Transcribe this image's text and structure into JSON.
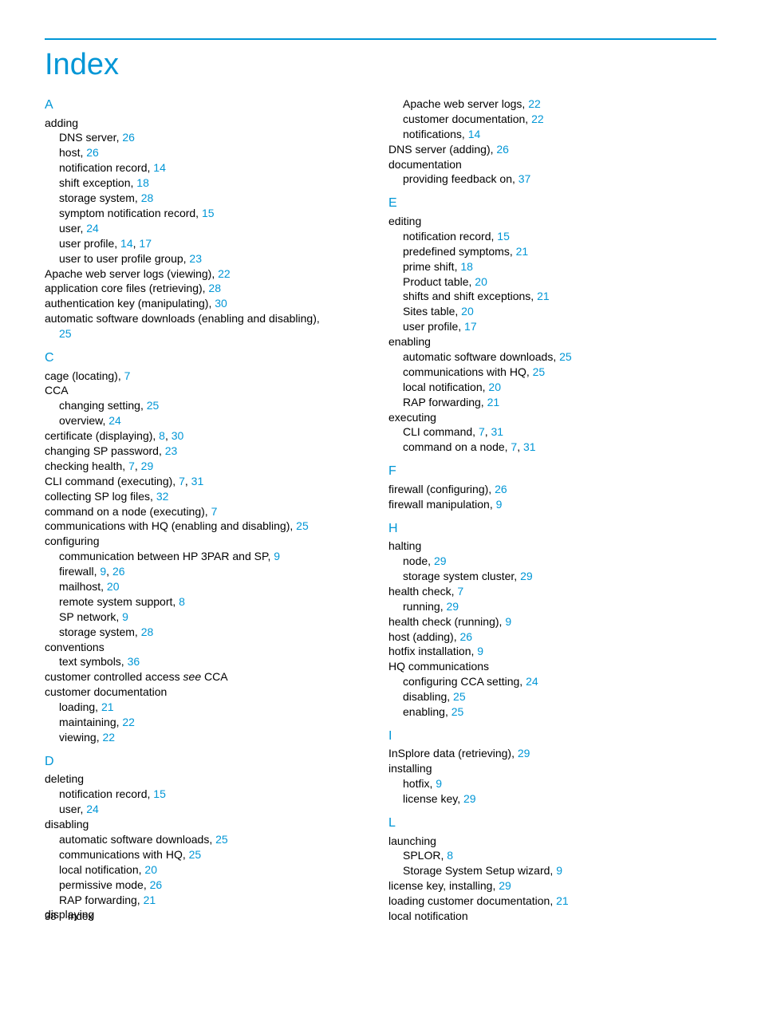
{
  "title": "Index",
  "footer": {
    "pageNum": "38",
    "label": "Index"
  },
  "colors": {
    "accent": "#0096d6",
    "text": "#000000",
    "bg": "#ffffff"
  },
  "typography": {
    "body_fontsize": 14,
    "title_fontsize": 38,
    "letter_fontsize": 16
  },
  "left": [
    {
      "type": "letter",
      "text": "A"
    },
    {
      "type": "entry",
      "level": 0,
      "text": "adding",
      "pages": []
    },
    {
      "type": "entry",
      "level": 1,
      "text": "DNS server, ",
      "pages": [
        "26"
      ]
    },
    {
      "type": "entry",
      "level": 1,
      "text": "host, ",
      "pages": [
        "26"
      ]
    },
    {
      "type": "entry",
      "level": 1,
      "text": "notification record, ",
      "pages": [
        "14"
      ]
    },
    {
      "type": "entry",
      "level": 1,
      "text": "shift exception, ",
      "pages": [
        "18"
      ]
    },
    {
      "type": "entry",
      "level": 1,
      "text": "storage system, ",
      "pages": [
        "28"
      ]
    },
    {
      "type": "entry",
      "level": 1,
      "text": "symptom notification record, ",
      "pages": [
        "15"
      ]
    },
    {
      "type": "entry",
      "level": 1,
      "text": "user, ",
      "pages": [
        "24"
      ]
    },
    {
      "type": "entry",
      "level": 1,
      "text": "user profile, ",
      "pages": [
        "14",
        "17"
      ]
    },
    {
      "type": "entry",
      "level": 1,
      "text": "user to user profile group, ",
      "pages": [
        "23"
      ]
    },
    {
      "type": "entry",
      "level": 0,
      "text": "Apache web server logs (viewing), ",
      "pages": [
        "22"
      ]
    },
    {
      "type": "entry",
      "level": 0,
      "text": "application core files (retrieving), ",
      "pages": [
        "28"
      ]
    },
    {
      "type": "entry",
      "level": 0,
      "text": "authentication key (manipulating), ",
      "pages": [
        "30"
      ]
    },
    {
      "type": "entry",
      "level": 0,
      "text": "automatic software downloads (enabling and disabling),",
      "pages": []
    },
    {
      "type": "entry",
      "level": 1,
      "text": "",
      "pages": [
        "25"
      ]
    },
    {
      "type": "letter",
      "text": "C"
    },
    {
      "type": "entry",
      "level": 0,
      "text": "cage (locating), ",
      "pages": [
        "7"
      ]
    },
    {
      "type": "entry",
      "level": 0,
      "text": "CCA",
      "pages": []
    },
    {
      "type": "entry",
      "level": 1,
      "text": "changing setting, ",
      "pages": [
        "25"
      ]
    },
    {
      "type": "entry",
      "level": 1,
      "text": "overview, ",
      "pages": [
        "24"
      ]
    },
    {
      "type": "entry",
      "level": 0,
      "text": "certificate (displaying), ",
      "pages": [
        "8",
        "30"
      ]
    },
    {
      "type": "entry",
      "level": 0,
      "text": "changing SP password, ",
      "pages": [
        "23"
      ]
    },
    {
      "type": "entry",
      "level": 0,
      "text": "checking health, ",
      "pages": [
        "7",
        "29"
      ]
    },
    {
      "type": "entry",
      "level": 0,
      "text": "CLI command (executing), ",
      "pages": [
        "7",
        "31"
      ]
    },
    {
      "type": "entry",
      "level": 0,
      "text": "collecting SP log files, ",
      "pages": [
        "32"
      ]
    },
    {
      "type": "entry",
      "level": 0,
      "text": "command on a node (executing), ",
      "pages": [
        "7"
      ]
    },
    {
      "type": "entry",
      "level": 0,
      "text": "communications with HQ (enabling and disabling), ",
      "pages": [
        "25"
      ]
    },
    {
      "type": "entry",
      "level": 0,
      "text": "configuring",
      "pages": []
    },
    {
      "type": "entry",
      "level": 1,
      "text": "communication between HP 3PAR and SP, ",
      "pages": [
        "9"
      ]
    },
    {
      "type": "entry",
      "level": 1,
      "text": "firewall, ",
      "pages": [
        "9",
        "26"
      ]
    },
    {
      "type": "entry",
      "level": 1,
      "text": "mailhost, ",
      "pages": [
        "20"
      ]
    },
    {
      "type": "entry",
      "level": 1,
      "text": "remote system support, ",
      "pages": [
        "8"
      ]
    },
    {
      "type": "entry",
      "level": 1,
      "text": "SP network, ",
      "pages": [
        "9"
      ]
    },
    {
      "type": "entry",
      "level": 1,
      "text": "storage system, ",
      "pages": [
        "28"
      ]
    },
    {
      "type": "entry",
      "level": 0,
      "text": "conventions",
      "pages": []
    },
    {
      "type": "entry",
      "level": 1,
      "text": "text symbols, ",
      "pages": [
        "36"
      ]
    },
    {
      "type": "entry",
      "level": 0,
      "text": "customer controlled access ",
      "pages": [],
      "see": "see",
      "seeTarget": " CCA"
    },
    {
      "type": "entry",
      "level": 0,
      "text": "customer documentation",
      "pages": []
    },
    {
      "type": "entry",
      "level": 1,
      "text": "loading, ",
      "pages": [
        "21"
      ]
    },
    {
      "type": "entry",
      "level": 1,
      "text": "maintaining, ",
      "pages": [
        "22"
      ]
    },
    {
      "type": "entry",
      "level": 1,
      "text": "viewing, ",
      "pages": [
        "22"
      ]
    },
    {
      "type": "letter",
      "text": "D"
    },
    {
      "type": "entry",
      "level": 0,
      "text": "deleting",
      "pages": []
    },
    {
      "type": "entry",
      "level": 1,
      "text": "notification record, ",
      "pages": [
        "15"
      ]
    },
    {
      "type": "entry",
      "level": 1,
      "text": "user, ",
      "pages": [
        "24"
      ]
    },
    {
      "type": "entry",
      "level": 0,
      "text": "disabling",
      "pages": []
    },
    {
      "type": "entry",
      "level": 1,
      "text": "automatic software downloads, ",
      "pages": [
        "25"
      ]
    },
    {
      "type": "entry",
      "level": 1,
      "text": "communications with HQ, ",
      "pages": [
        "25"
      ]
    },
    {
      "type": "entry",
      "level": 1,
      "text": "local notification, ",
      "pages": [
        "20"
      ]
    },
    {
      "type": "entry",
      "level": 1,
      "text": "permissive mode, ",
      "pages": [
        "26"
      ]
    },
    {
      "type": "entry",
      "level": 1,
      "text": "RAP forwarding, ",
      "pages": [
        "21"
      ]
    },
    {
      "type": "entry",
      "level": 0,
      "text": "displaying",
      "pages": []
    }
  ],
  "right": [
    {
      "type": "entry",
      "level": 1,
      "text": "Apache web server logs, ",
      "pages": [
        "22"
      ]
    },
    {
      "type": "entry",
      "level": 1,
      "text": "customer documentation, ",
      "pages": [
        "22"
      ]
    },
    {
      "type": "entry",
      "level": 1,
      "text": "notifications, ",
      "pages": [
        "14"
      ]
    },
    {
      "type": "entry",
      "level": 0,
      "text": "DNS server (adding), ",
      "pages": [
        "26"
      ]
    },
    {
      "type": "entry",
      "level": 0,
      "text": "documentation",
      "pages": []
    },
    {
      "type": "entry",
      "level": 1,
      "text": "providing feedback on, ",
      "pages": [
        "37"
      ]
    },
    {
      "type": "letter",
      "text": "E"
    },
    {
      "type": "entry",
      "level": 0,
      "text": "editing",
      "pages": []
    },
    {
      "type": "entry",
      "level": 1,
      "text": "notification record, ",
      "pages": [
        "15"
      ]
    },
    {
      "type": "entry",
      "level": 1,
      "text": "predefined symptoms, ",
      "pages": [
        "21"
      ]
    },
    {
      "type": "entry",
      "level": 1,
      "text": "prime shift, ",
      "pages": [
        "18"
      ]
    },
    {
      "type": "entry",
      "level": 1,
      "text": "Product table, ",
      "pages": [
        "20"
      ]
    },
    {
      "type": "entry",
      "level": 1,
      "text": "shifts and shift exceptions, ",
      "pages": [
        "21"
      ]
    },
    {
      "type": "entry",
      "level": 1,
      "text": "Sites table, ",
      "pages": [
        "20"
      ]
    },
    {
      "type": "entry",
      "level": 1,
      "text": "user profile, ",
      "pages": [
        "17"
      ]
    },
    {
      "type": "entry",
      "level": 0,
      "text": "enabling",
      "pages": []
    },
    {
      "type": "entry",
      "level": 1,
      "text": "automatic software downloads, ",
      "pages": [
        "25"
      ]
    },
    {
      "type": "entry",
      "level": 1,
      "text": "communications with HQ, ",
      "pages": [
        "25"
      ]
    },
    {
      "type": "entry",
      "level": 1,
      "text": "local notification, ",
      "pages": [
        "20"
      ]
    },
    {
      "type": "entry",
      "level": 1,
      "text": "RAP forwarding, ",
      "pages": [
        "21"
      ]
    },
    {
      "type": "entry",
      "level": 0,
      "text": "executing",
      "pages": []
    },
    {
      "type": "entry",
      "level": 1,
      "text": "CLI command, ",
      "pages": [
        "7",
        "31"
      ]
    },
    {
      "type": "entry",
      "level": 1,
      "text": "command on a node, ",
      "pages": [
        "7",
        "31"
      ]
    },
    {
      "type": "letter",
      "text": "F"
    },
    {
      "type": "entry",
      "level": 0,
      "text": "firewall (configuring), ",
      "pages": [
        "26"
      ]
    },
    {
      "type": "entry",
      "level": 0,
      "text": "firewall manipulation, ",
      "pages": [
        "9"
      ]
    },
    {
      "type": "letter",
      "text": "H"
    },
    {
      "type": "entry",
      "level": 0,
      "text": "halting",
      "pages": []
    },
    {
      "type": "entry",
      "level": 1,
      "text": "node, ",
      "pages": [
        "29"
      ]
    },
    {
      "type": "entry",
      "level": 1,
      "text": "storage system cluster, ",
      "pages": [
        "29"
      ]
    },
    {
      "type": "entry",
      "level": 0,
      "text": "health check, ",
      "pages": [
        "7"
      ]
    },
    {
      "type": "entry",
      "level": 1,
      "text": "running, ",
      "pages": [
        "29"
      ]
    },
    {
      "type": "entry",
      "level": 0,
      "text": "health check (running), ",
      "pages": [
        "9"
      ]
    },
    {
      "type": "entry",
      "level": 0,
      "text": "host (adding), ",
      "pages": [
        "26"
      ]
    },
    {
      "type": "entry",
      "level": 0,
      "text": "hotfix installation, ",
      "pages": [
        "9"
      ]
    },
    {
      "type": "entry",
      "level": 0,
      "text": "HQ communications",
      "pages": []
    },
    {
      "type": "entry",
      "level": 1,
      "text": "configuring CCA setting, ",
      "pages": [
        "24"
      ]
    },
    {
      "type": "entry",
      "level": 1,
      "text": "disabling, ",
      "pages": [
        "25"
      ]
    },
    {
      "type": "entry",
      "level": 1,
      "text": "enabling, ",
      "pages": [
        "25"
      ]
    },
    {
      "type": "letter",
      "text": "I"
    },
    {
      "type": "entry",
      "level": 0,
      "text": "InSplore data (retrieving), ",
      "pages": [
        "29"
      ]
    },
    {
      "type": "entry",
      "level": 0,
      "text": "installing",
      "pages": []
    },
    {
      "type": "entry",
      "level": 1,
      "text": "hotfix, ",
      "pages": [
        "9"
      ]
    },
    {
      "type": "entry",
      "level": 1,
      "text": "license key, ",
      "pages": [
        "29"
      ]
    },
    {
      "type": "letter",
      "text": "L"
    },
    {
      "type": "entry",
      "level": 0,
      "text": "launching",
      "pages": []
    },
    {
      "type": "entry",
      "level": 1,
      "text": "SPLOR, ",
      "pages": [
        "8"
      ]
    },
    {
      "type": "entry",
      "level": 1,
      "text": "Storage System Setup wizard, ",
      "pages": [
        "9"
      ]
    },
    {
      "type": "entry",
      "level": 0,
      "text": "license key, installing, ",
      "pages": [
        "29"
      ]
    },
    {
      "type": "entry",
      "level": 0,
      "text": "loading customer documentation, ",
      "pages": [
        "21"
      ]
    },
    {
      "type": "entry",
      "level": 0,
      "text": "local notification",
      "pages": []
    }
  ]
}
